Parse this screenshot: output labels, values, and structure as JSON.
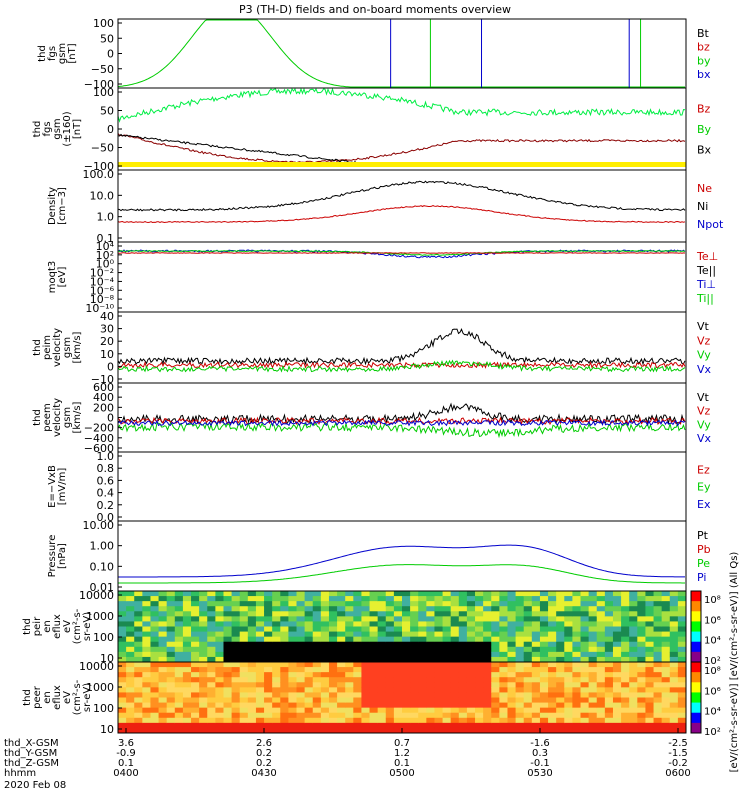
{
  "title": "P3 (TH-D) fields and on-board moments overview",
  "chart_data": {
    "type": "line",
    "title": "P3 (TH-D) fields and on-board moments overview",
    "x_time_ticks": [
      "0400",
      "0430",
      "0500",
      "0530",
      "0600"
    ],
    "date_label": "2020 Feb 08",
    "ephemeris": [
      {
        "name": "thd_X-GSM",
        "values": [
          "3.6",
          "2.6",
          "0.7",
          "-1.6",
          "-2.5"
        ]
      },
      {
        "name": "thd_Y-GSM",
        "values": [
          "-0.9",
          "0.2",
          "1.2",
          "0.3",
          "-1.5"
        ]
      },
      {
        "name": "thd_Z-GSM",
        "values": [
          "0.1",
          "0.2",
          "0.1",
          "-0.1",
          "-0.2"
        ]
      },
      {
        "name": "hhmm",
        "values": [
          "0400",
          "0430",
          "0500",
          "0530",
          "0600"
        ]
      }
    ],
    "panels": [
      {
        "id": "fgs",
        "ylabel": [
          "thd",
          "fgs",
          "gsm",
          "[nT]"
        ],
        "ylim": [
          -100,
          100
        ],
        "yticks": [
          "100",
          "50",
          "0",
          "−50",
          "−100"
        ],
        "legend": [
          {
            "label": "Bt",
            "color": "#000000"
          },
          {
            "label": "bz",
            "color": "#cc0000"
          },
          {
            "label": "by",
            "color": "#00cc00"
          },
          {
            "label": "bx",
            "color": "#0000cc"
          }
        ]
      },
      {
        "id": "fgs_dsl",
        "ylabel": [
          "thd",
          "fgs",
          "gsm",
          "(±160)",
          "[nT]"
        ],
        "ylim": [
          -130,
          130
        ],
        "yticks": [
          "100",
          "50",
          "0",
          "−50",
          "−100"
        ],
        "legend": [
          {
            "label": "Bz",
            "color": "#cc0000"
          },
          {
            "label": "By",
            "color": "#00cc00"
          },
          {
            "label": "Bx",
            "color": "#000000"
          }
        ]
      },
      {
        "id": "density",
        "ylabel": [
          "Density",
          "[cm−3]"
        ],
        "log": true,
        "yticks": [
          "100.0",
          "10.0",
          "1.0",
          "0.1"
        ],
        "legend": [
          {
            "label": "Ne",
            "color": "#cc0000"
          },
          {
            "label": "Ni",
            "color": "#000000"
          },
          {
            "label": "Npot",
            "color": "#0000cc"
          }
        ]
      },
      {
        "id": "temp",
        "ylabel": [
          "moqt3",
          "[eV]"
        ],
        "log": true,
        "yticks": [
          "10⁴",
          "10²",
          "10⁰",
          "10⁻²",
          "10⁻⁴",
          "10⁻⁶",
          "10⁻⁸",
          "10⁻¹⁰"
        ],
        "legend": [
          {
            "label": "Te⊥",
            "color": "#cc0000"
          },
          {
            "label": "Te||",
            "color": "#000000"
          },
          {
            "label": "Ti⊥",
            "color": "#0000cc"
          },
          {
            "label": "Ti||",
            "color": "#00cc00"
          }
        ]
      },
      {
        "id": "peim",
        "ylabel": [
          "thd",
          "peim",
          "velocity",
          "gsm",
          "[km/s]"
        ],
        "ylim": [
          -20,
          40
        ],
        "yticks": [
          "40",
          "30",
          "20",
          "10",
          "0",
          "−10"
        ],
        "legend": [
          {
            "label": "Vt",
            "color": "#000000"
          },
          {
            "label": "Vz",
            "color": "#cc0000"
          },
          {
            "label": "Vy",
            "color": "#00cc00"
          },
          {
            "label": "Vx",
            "color": "#0000cc"
          }
        ]
      },
      {
        "id": "peem",
        "ylabel": [
          "thd",
          "peem",
          "velocity",
          "gsm",
          "[km/s]"
        ],
        "ylim": [
          -600,
          600
        ],
        "yticks": [
          "600",
          "400",
          "200",
          "0",
          "−200",
          "−400",
          "−600"
        ],
        "legend": [
          {
            "label": "Vt",
            "color": "#000000"
          },
          {
            "label": "Vz",
            "color": "#cc0000"
          },
          {
            "label": "Vy",
            "color": "#00cc00"
          },
          {
            "label": "Vx",
            "color": "#0000cc"
          }
        ]
      },
      {
        "id": "efield",
        "ylabel": [
          "E=−VxB",
          "[mV/m]"
        ],
        "ylim": [
          0,
          1
        ],
        "yticks": [
          "1.0",
          "0.8",
          "0.6",
          "0.4",
          "0.2",
          "0.0"
        ],
        "legend": [
          {
            "label": "Ez",
            "color": "#cc0000"
          },
          {
            "label": "Ey",
            "color": "#00cc00"
          },
          {
            "label": "Ex",
            "color": "#0000cc"
          }
        ]
      },
      {
        "id": "pressure",
        "ylabel": [
          "Pressure",
          "[nPa]"
        ],
        "log": true,
        "yticks": [
          "10.00",
          "1.00",
          "0.10",
          "0.01"
        ],
        "legend": [
          {
            "label": "Pt",
            "color": "#000000"
          },
          {
            "label": "Pb",
            "color": "#cc0000"
          },
          {
            "label": "Pe",
            "color": "#00cc00"
          },
          {
            "label": "Pi",
            "color": "#0000cc"
          }
        ]
      },
      {
        "id": "peir",
        "ylabel": [
          "thd",
          "peir",
          "en",
          "eflux",
          "eV",
          "(cm²-s-",
          "sr-eV)"
        ],
        "yticks": [
          "10000",
          "1000",
          "100",
          "10"
        ],
        "colorbar": [
          "10⁸",
          "10⁶",
          "10⁴",
          "10²"
        ]
      },
      {
        "id": "peer",
        "ylabel": [
          "thd",
          "peer",
          "en",
          "eflux",
          "eV",
          "(cm²-s-",
          "sr-eV)"
        ],
        "yticks": [
          "10000",
          "1000",
          "100",
          "10"
        ],
        "colorbar": [
          "10⁸",
          "10⁶",
          "10⁴",
          "10²"
        ]
      }
    ],
    "colorbar_label": "[eV/(cm²-s-sr-eV)] [eV/(cm²-s-sr-eV)] (All Qs)"
  }
}
